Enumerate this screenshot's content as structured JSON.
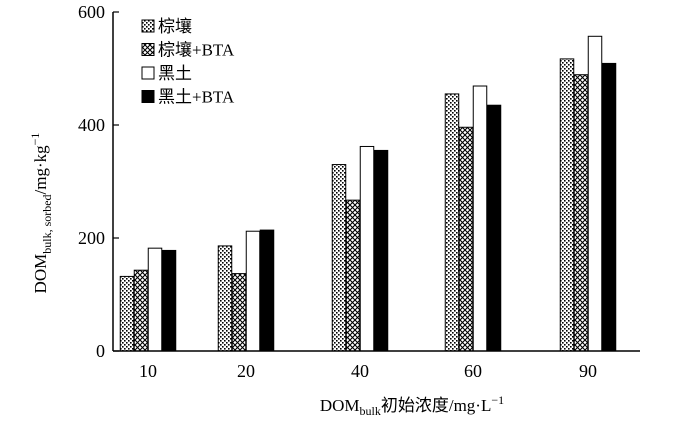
{
  "chart_data": {
    "type": "bar",
    "categories": [
      "10",
      "20",
      "40",
      "60",
      "90"
    ],
    "series": [
      {
        "name": "棕壤",
        "pattern": "dots",
        "values": [
          132,
          186,
          330,
          455,
          517
        ]
      },
      {
        "name": "棕壤+BTA",
        "pattern": "checker",
        "values": [
          143,
          137,
          267,
          396,
          489
        ]
      },
      {
        "name": "黑土",
        "pattern": "white",
        "values": [
          182,
          212,
          362,
          469,
          557
        ]
      },
      {
        "name": "黑土+BTA",
        "pattern": "black",
        "values": [
          178,
          214,
          355,
          435,
          509
        ]
      }
    ],
    "yticks": [
      0,
      200,
      400,
      600
    ],
    "ylim": [
      0,
      600
    ],
    "legend_position": "top-left",
    "grid": false,
    "ylabel": {
      "main": "DOM",
      "sub": "bulk, sorbed",
      "unit": "/mg·kg",
      "sup": "−1"
    },
    "xlabel": {
      "main": "DOM",
      "sub": "bulk",
      "rest": "初始浓度/mg·L",
      "sup": "−1"
    }
  }
}
